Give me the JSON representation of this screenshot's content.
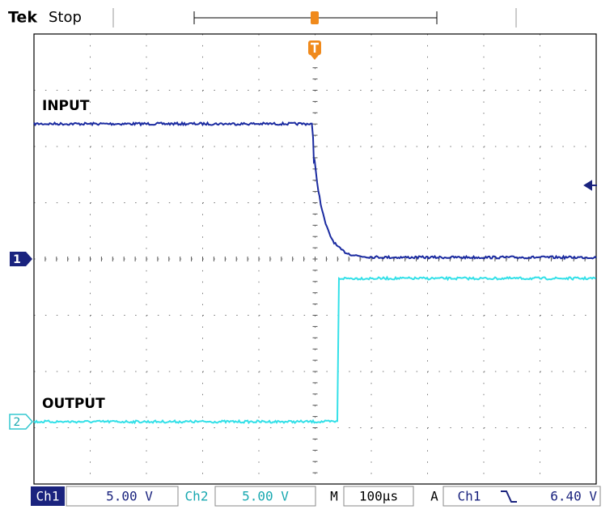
{
  "header": {
    "brand": "Tek",
    "status": "Stop"
  },
  "traces": [
    {
      "label": "INPUT",
      "marker": "1"
    },
    {
      "label": "OUTPUT",
      "marker": "2"
    }
  ],
  "footer": {
    "ch1": "Ch1",
    "ch1_scale": "5.00 V",
    "ch2": "Ch2",
    "ch2_scale": "5.00 V",
    "time_mode": "M",
    "time_scale": "100µs",
    "trigger_mode": "A",
    "trigger_source": "Ch1",
    "trigger_level": "6.40 V"
  }
}
